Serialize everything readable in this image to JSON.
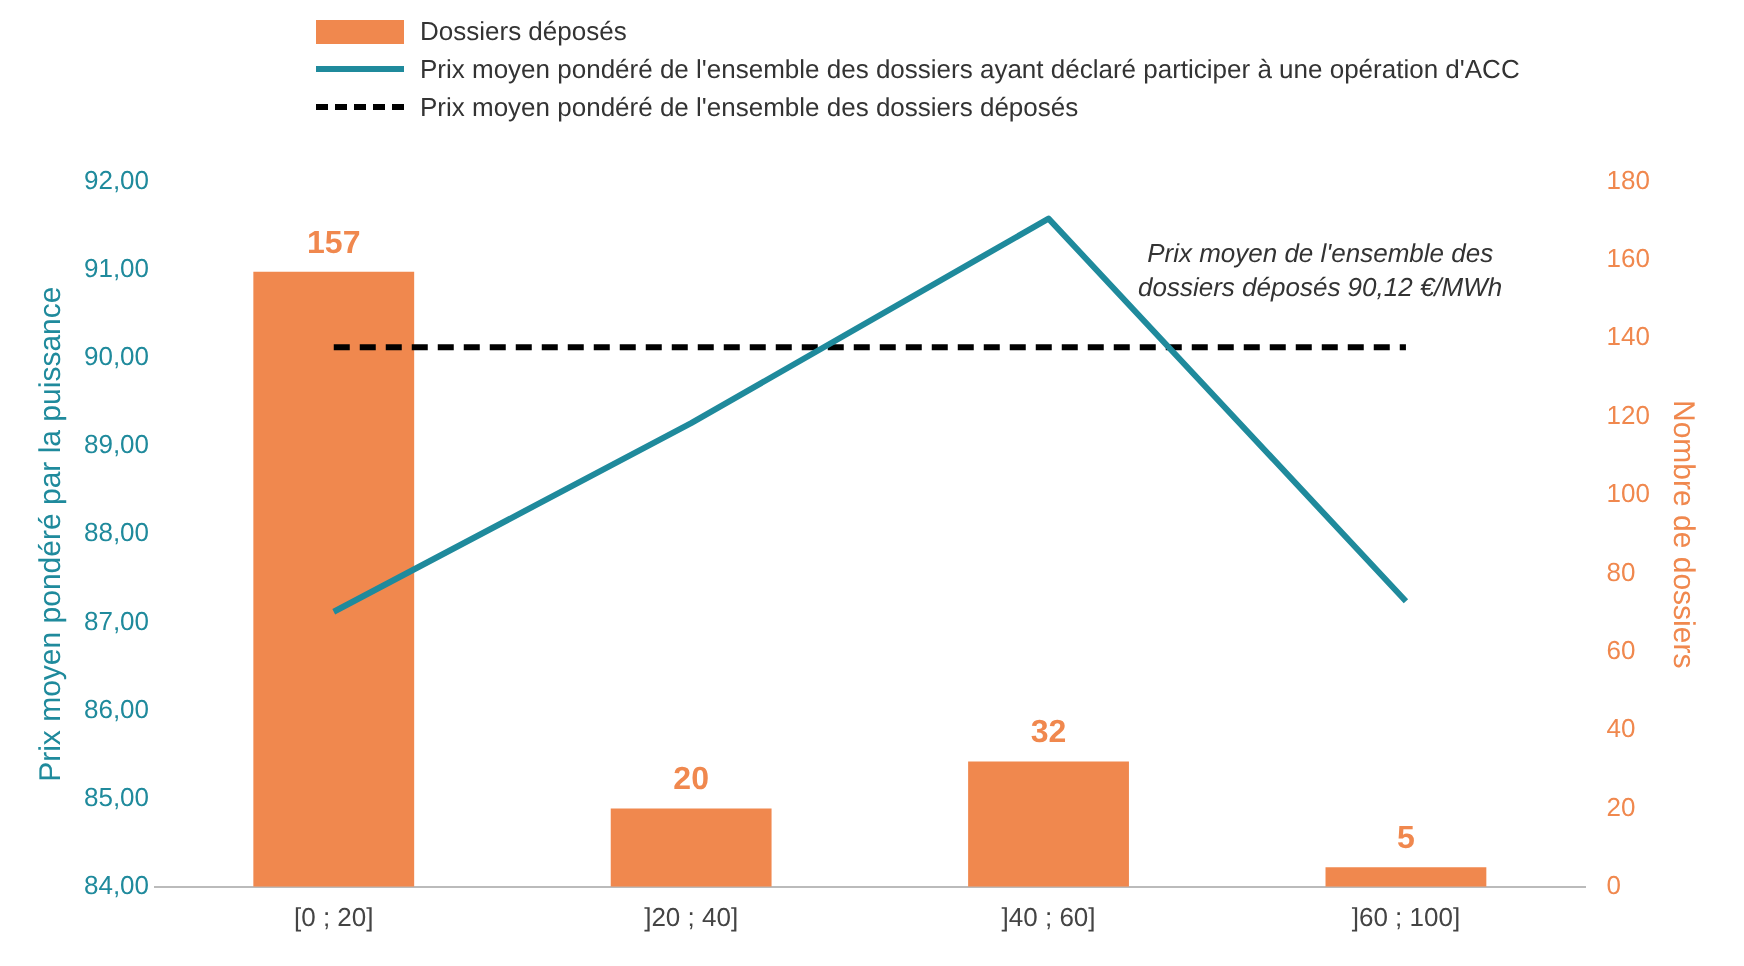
{
  "chart_data": {
    "type": "bar",
    "categories": [
      "[0 ; 20]",
      "]20 ; 40]",
      "]40 ; 60]",
      "]60 ; 100]"
    ],
    "ylabel": "Prix moyen pondéré par la puissance",
    "y2label": "Nombre de dossiers",
    "ylim": [
      84,
      92
    ],
    "yticks": [
      {
        "value": 84,
        "label": "84,00"
      },
      {
        "value": 85,
        "label": "85,00"
      },
      {
        "value": 86,
        "label": "86,00"
      },
      {
        "value": 87,
        "label": "87,00"
      },
      {
        "value": 88,
        "label": "88,00"
      },
      {
        "value": 89,
        "label": "89,00"
      },
      {
        "value": 90,
        "label": "90,00"
      },
      {
        "value": 91,
        "label": "91,00"
      },
      {
        "value": 92,
        "label": "92,00"
      }
    ],
    "y2lim": [
      0,
      180
    ],
    "y2ticks": [
      0,
      20,
      40,
      60,
      80,
      100,
      120,
      140,
      160,
      180
    ],
    "series": [
      {
        "name": "Dossiers déposés",
        "color": "#f0884e",
        "axis": "y2",
        "values": [
          157,
          20,
          32,
          5
        ],
        "value_labels": [
          "157",
          "20",
          "32",
          "5"
        ]
      },
      {
        "type": "line",
        "name": "Prix moyen pondéré de l'ensemble des dossiers ayant déclaré participer à une opération d'ACC",
        "color": "#1f8a9c",
        "values": [
          87.12,
          89.26,
          91.58,
          87.24
        ],
        "line_style": "solid"
      },
      {
        "type": "line",
        "name": "Prix moyen pondéré de l'ensemble des dossiers déposés",
        "color": "#000000",
        "values": [
          90.12,
          90.12,
          90.12,
          90.12
        ],
        "line_style": "dashed"
      }
    ],
    "annotations": [
      "Prix moyen de l'ensemble des dossiers déposés 90,12 €/MWh"
    ],
    "legend": "top left",
    "grid": false,
    "marker": "none"
  }
}
